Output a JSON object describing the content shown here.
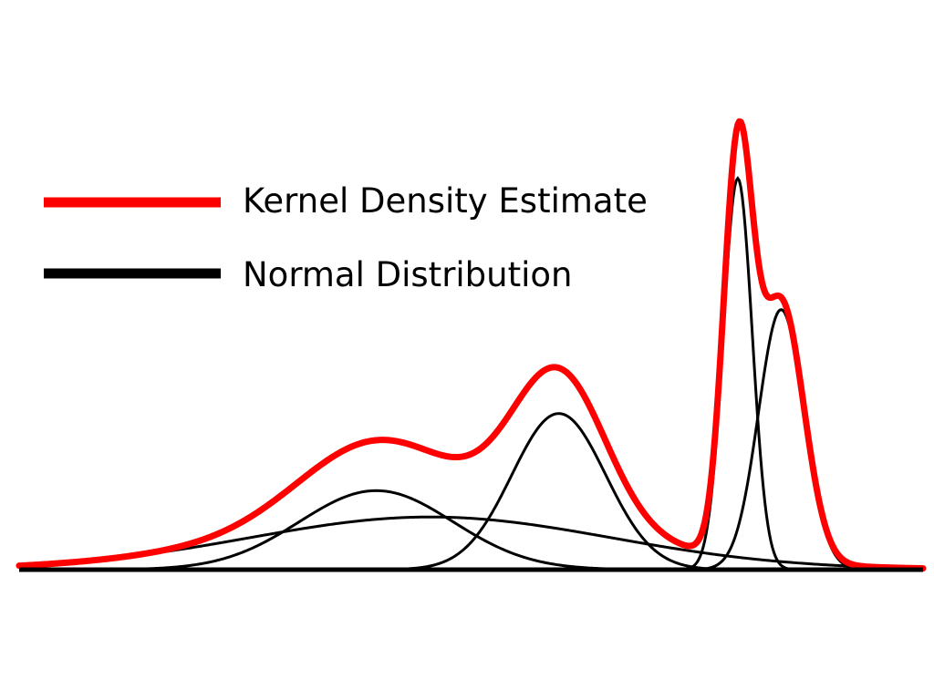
{
  "chart_data": {
    "type": "line",
    "title": "",
    "xlabel": "",
    "ylabel": "",
    "xlim": [
      0,
      10
    ],
    "ylim": [
      0,
      1
    ],
    "grid": false,
    "axes_visible": false,
    "legend": {
      "placement": "top-left",
      "entries": [
        {
          "label": "Kernel Density Estimate",
          "color": "#ff0000"
        },
        {
          "label": "Normal Distribution",
          "color": "#000000"
        }
      ]
    },
    "series": [
      {
        "name": "Kernel Density Estimate",
        "role": "kde",
        "color": "#ff0000"
      },
      {
        "name": "Normal Distribution",
        "role": "components",
        "color": "#000000",
        "components": [
          {
            "mean": 3.95,
            "sd": 0.85,
            "peak": 0.168
          },
          {
            "mean": 4.55,
            "sd": 2.0,
            "peak": 0.112
          },
          {
            "mean": 5.97,
            "sd": 0.52,
            "peak": 0.332
          },
          {
            "mean": 7.95,
            "sd": 0.16,
            "peak": 0.832
          },
          {
            "mean": 8.43,
            "sd": 0.25,
            "peak": 0.553
          }
        ]
      }
    ]
  }
}
